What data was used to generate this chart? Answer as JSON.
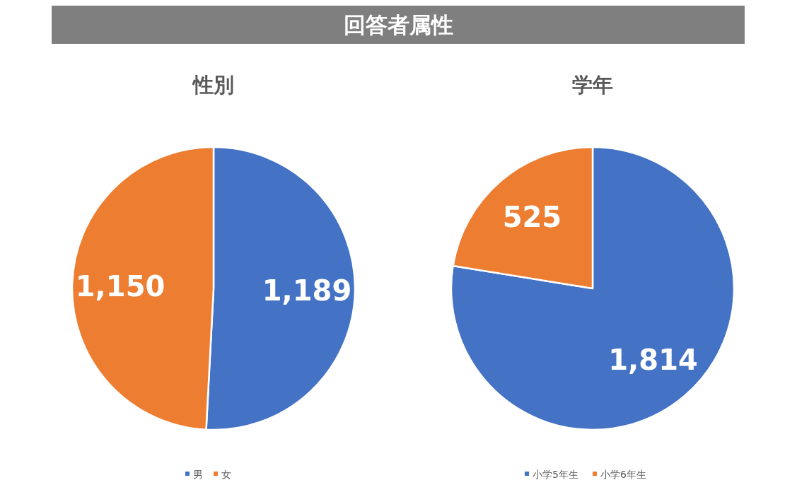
{
  "chart_data": [
    {
      "type": "other",
      "title": "回答者属性"
    },
    {
      "type": "pie",
      "title": "性別",
      "categories": [
        "男",
        "女"
      ],
      "values": [
        1189,
        1150
      ],
      "value_labels": [
        "1,189",
        "1,150"
      ],
      "colors": [
        "#4472c4",
        "#ed7d31"
      ],
      "legend": "bottom"
    },
    {
      "type": "pie",
      "title": "学年",
      "categories": [
        "小学5年生",
        "小学6年生"
      ],
      "values": [
        1814,
        525
      ],
      "value_labels": [
        "1,814",
        "525"
      ],
      "colors": [
        "#4472c4",
        "#ed7d31"
      ],
      "legend": "bottom"
    }
  ]
}
